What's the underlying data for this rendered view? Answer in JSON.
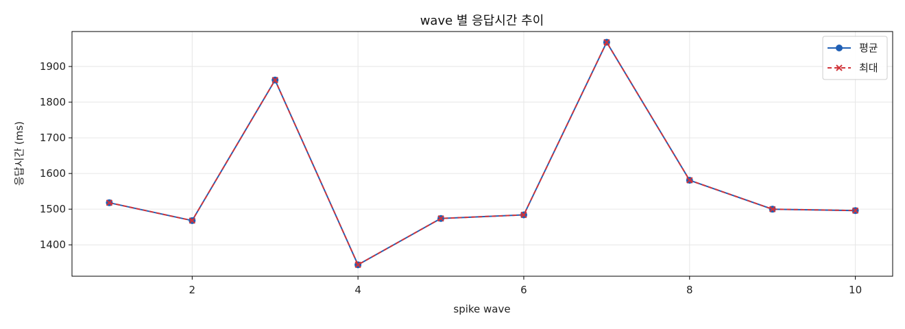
{
  "chart_data": {
    "type": "line",
    "title": "wave 별 응답시간 추이",
    "xlabel": "spike wave",
    "ylabel": "응답시간 (ms)",
    "x": [
      1,
      2,
      3,
      4,
      5,
      6,
      7,
      8,
      9,
      10
    ],
    "xticks": [
      "2",
      "4",
      "6",
      "8",
      "10"
    ],
    "yticks": [
      "1400",
      "1500",
      "1600",
      "1700",
      "1800",
      "1900"
    ],
    "xlim": [
      0.55,
      10.45
    ],
    "ylim": [
      1312,
      1998
    ],
    "grid": true,
    "legend_position": "top-right",
    "series": [
      {
        "name": "평균",
        "values": [
          1518,
          1468,
          1862,
          1344,
          1474,
          1484,
          1968,
          1581,
          1500,
          1496
        ],
        "color": "#1f5fb5",
        "marker": "circle",
        "linestyle": "solid"
      },
      {
        "name": "최대",
        "values": [
          1518,
          1468,
          1862,
          1344,
          1474,
          1484,
          1968,
          1581,
          1500,
          1496
        ],
        "color": "#d1343a",
        "marker": "x",
        "linestyle": "dashed"
      }
    ]
  }
}
